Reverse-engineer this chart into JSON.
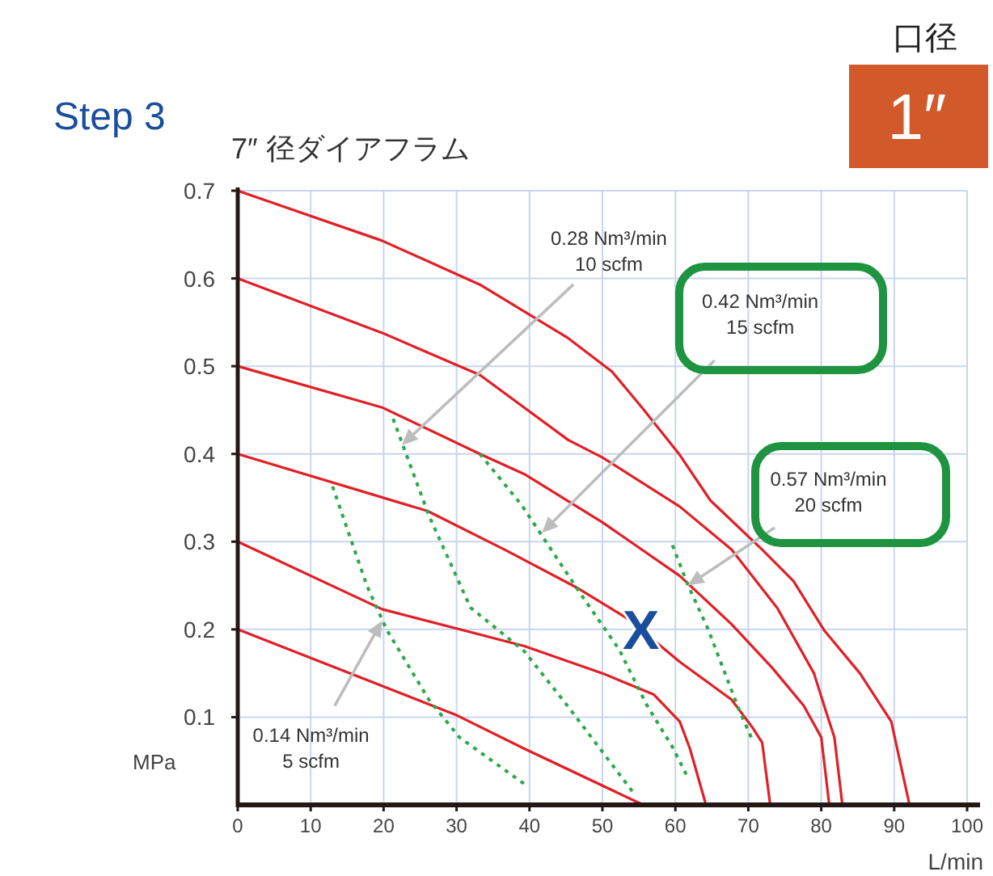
{
  "chart_data": {
    "type": "line",
    "title": "Step 3",
    "subtitle": "7″ 径ダイアフラム",
    "xlabel": "L/min",
    "ylabel": "MPa",
    "xlim": [
      0,
      100
    ],
    "xticks": [
      0,
      10,
      20,
      30,
      40,
      50,
      60,
      70,
      80,
      90,
      100
    ],
    "ylim": [
      0,
      0.7
    ],
    "yticks": [
      0.1,
      0.2,
      0.3,
      0.4,
      0.5,
      0.6,
      0.7
    ],
    "grid": true,
    "annotations": [
      "口径",
      "1″",
      {
        "text": "0.14 Nm³/min\n5 scfm",
        "x": 19.8,
        "y": 0.21
      },
      {
        "text": "0.28 Nm³/min\n10 scfm",
        "x": 22.5,
        "y": 0.41
      },
      {
        "text": "0.42 Nm³/min\n15 scfm",
        "x": 41.7,
        "y": 0.31
      },
      {
        "text": "0.57 Nm³/min\n20 scfm",
        "x": 61.7,
        "y": 0.25
      },
      {
        "text": "X",
        "x": 55.3,
        "y": 0.2
      }
    ],
    "series": [
      {
        "color": "#e02027",
        "line_style": "solid",
        "x": [
          0,
          19.8,
          33.2,
          45.3,
          51.3,
          55.6,
          60.5,
          64.8,
          71.9,
          76.2,
          80.4,
          85.3,
          89.6,
          92.1
        ],
        "values": [
          0.7,
          0.643,
          0.593,
          0.532,
          0.494,
          0.451,
          0.4,
          0.347,
          0.291,
          0.255,
          0.199,
          0.15,
          0.095,
          0
        ]
      },
      {
        "color": "#e02027",
        "line_style": "solid",
        "x": [
          0,
          19.8,
          33.2,
          45.3,
          50,
          60.6,
          67.7,
          74,
          79,
          80.4,
          81.8,
          82.9
        ],
        "values": [
          0.6,
          0.538,
          0.49,
          0.416,
          0.396,
          0.34,
          0.291,
          0.224,
          0.15,
          0.113,
          0.077,
          0
        ]
      },
      {
        "color": "#e02027",
        "line_style": "solid",
        "x": [
          0,
          19.8,
          33.2,
          39.3,
          50,
          60.6,
          67.7,
          73.3,
          77.6,
          80,
          81.1
        ],
        "values": [
          0.5,
          0.453,
          0.4,
          0.377,
          0.322,
          0.261,
          0.206,
          0.156,
          0.113,
          0.077,
          0
        ]
      },
      {
        "color": "#e02027",
        "line_style": "solid",
        "x": [
          0,
          26,
          36.8,
          46.4,
          53.5,
          60.6,
          67.7,
          70.5,
          71.9,
          73
        ],
        "values": [
          0.4,
          0.335,
          0.29,
          0.248,
          0.212,
          0.163,
          0.12,
          0.089,
          0.071,
          0
        ]
      },
      {
        "color": "#e02027",
        "line_style": "solid",
        "x": [
          0,
          19.8,
          39.3,
          50,
          57,
          60.6,
          62,
          64.2
        ],
        "values": [
          0.3,
          0.223,
          0.181,
          0.15,
          0.126,
          0.095,
          0.064,
          0
        ]
      },
      {
        "color": "#e02027",
        "line_style": "solid",
        "x": [
          0,
          29.8,
          39.3,
          55.6
        ],
        "values": [
          0.2,
          0.103,
          0.064,
          0
        ]
      },
      {
        "color": "#2ea84a",
        "line_style": "dotted",
        "x": [
          13,
          17.7,
          20.4,
          26.2,
          30.4,
          39.6
        ],
        "values": [
          0.363,
          0.25,
          0.2,
          0.12,
          0.077,
          0.022
        ]
      },
      {
        "color": "#2ea84a",
        "line_style": "dotted",
        "x": [
          21.3,
          26.2,
          31.9,
          39.3,
          45.3,
          54.5
        ],
        "values": [
          0.44,
          0.33,
          0.225,
          0.175,
          0.112,
          0.011
        ]
      },
      {
        "color": "#2ea84a",
        "line_style": "dotted",
        "x": [
          33.2,
          38.9,
          46.8,
          52.3,
          56,
          59.6,
          61.7
        ],
        "values": [
          0.4,
          0.342,
          0.243,
          0.177,
          0.115,
          0.066,
          0.031
        ]
      },
      {
        "color": "#2ea84a",
        "line_style": "dotted",
        "x": [
          59.6,
          61.7,
          64.5,
          68.7,
          70.4
        ],
        "values": [
          0.296,
          0.251,
          0.2,
          0.109,
          0.077
        ]
      }
    ]
  }
}
